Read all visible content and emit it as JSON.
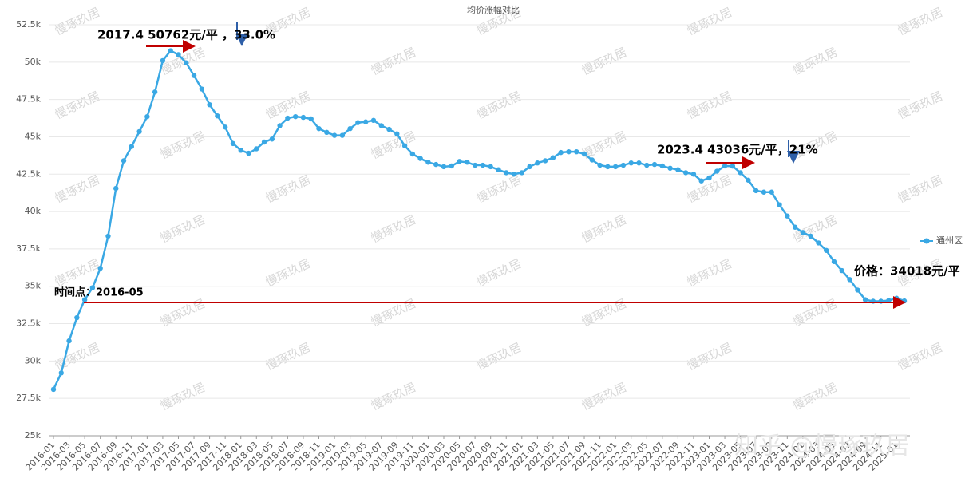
{
  "chart_data": {
    "type": "line",
    "title": "均价涨幅对比",
    "categories": [
      "2016-01",
      "2016-02",
      "2016-03",
      "2016-04",
      "2016-05",
      "2016-06",
      "2016-07",
      "2016-08",
      "2016-09",
      "2016-10",
      "2016-11",
      "2016-12",
      "2017-01",
      "2017-02",
      "2017-03",
      "2017-04",
      "2017-05",
      "2017-06",
      "2017-07",
      "2017-08",
      "2017-09",
      "2017-10",
      "2017-11",
      "2017-12",
      "2018-01",
      "2018-02",
      "2018-03",
      "2018-04",
      "2018-05",
      "2018-06",
      "2018-07",
      "2018-08",
      "2018-09",
      "2018-10",
      "2018-11",
      "2018-12",
      "2019-01",
      "2019-02",
      "2019-03",
      "2019-04",
      "2019-05",
      "2019-06",
      "2019-07",
      "2019-08",
      "2019-09",
      "2019-10",
      "2019-11",
      "2019-12",
      "2020-01",
      "2020-02",
      "2020-03",
      "2020-04",
      "2020-05",
      "2020-06",
      "2020-07",
      "2020-08",
      "2020-09",
      "2020-10",
      "2020-11",
      "2020-12",
      "2021-01",
      "2021-02",
      "2021-03",
      "2021-04",
      "2021-05",
      "2021-06",
      "2021-07",
      "2021-08",
      "2021-09",
      "2021-10",
      "2021-11",
      "2021-12",
      "2022-01",
      "2022-02",
      "2022-03",
      "2022-04",
      "2022-05",
      "2022-06",
      "2022-07",
      "2022-08",
      "2022-09",
      "2022-10",
      "2022-11",
      "2022-12",
      "2023-01",
      "2023-02",
      "2023-03",
      "2023-04",
      "2023-05",
      "2023-06",
      "2023-07",
      "2023-08",
      "2023-09",
      "2023-10",
      "2023-11",
      "2023-12",
      "2024-01",
      "2024-02",
      "2024-03",
      "2024-04",
      "2024-05",
      "2024-06",
      "2024-07",
      "2024-08",
      "2024-09",
      "2024-10",
      "2024-11",
      "2024-12",
      "2025-01",
      "2025-02"
    ],
    "series": [
      {
        "name": "通州区",
        "color": "#3aa8e4",
        "values": [
          28.1,
          29.2,
          31.35,
          32.9,
          34.1,
          34.9,
          36.2,
          38.35,
          41.55,
          43.4,
          44.35,
          45.35,
          46.35,
          48.0,
          50.1,
          50.76,
          50.5,
          49.95,
          49.1,
          48.2,
          47.15,
          46.4,
          45.65,
          44.55,
          44.1,
          43.9,
          44.2,
          44.65,
          44.85,
          45.75,
          46.25,
          46.35,
          46.3,
          46.2,
          45.55,
          45.3,
          45.1,
          45.1,
          45.55,
          45.95,
          46.0,
          46.1,
          45.75,
          45.5,
          45.2,
          44.4,
          43.85,
          43.55,
          43.3,
          43.15,
          43.0,
          43.05,
          43.35,
          43.3,
          43.1,
          43.1,
          43.0,
          42.8,
          42.6,
          42.5,
          42.6,
          43.0,
          43.25,
          43.4,
          43.6,
          43.95,
          44.0,
          44.0,
          43.85,
          43.45,
          43.1,
          43.0,
          43.0,
          43.1,
          43.25,
          43.25,
          43.1,
          43.15,
          43.05,
          42.9,
          42.8,
          42.6,
          42.5,
          42.05,
          42.25,
          42.7,
          43.05,
          43.04,
          42.6,
          42.1,
          41.4,
          41.3,
          41.3,
          40.45,
          39.7,
          38.95,
          38.6,
          38.35,
          37.9,
          37.4,
          36.65,
          36.05,
          35.45,
          34.75,
          34.1,
          34.0,
          34.0,
          34.05,
          34.2,
          34.02
        ]
      }
    ],
    "ylim": [
      25,
      52.5
    ],
    "yticks": [
      {
        "value": 25,
        "label": "25k"
      },
      {
        "value": 27.5,
        "label": "27.5k"
      },
      {
        "value": 30,
        "label": "30k"
      },
      {
        "value": 32.5,
        "label": "32.5k"
      },
      {
        "value": 35,
        "label": "35k"
      },
      {
        "value": 37.5,
        "label": "37.5k"
      },
      {
        "value": 40,
        "label": "40k"
      },
      {
        "value": 42.5,
        "label": "42.5k"
      },
      {
        "value": 45,
        "label": "45k"
      },
      {
        "value": 47.5,
        "label": "47.5k"
      },
      {
        "value": 50,
        "label": "50k"
      },
      {
        "value": 52.5,
        "label": "52.5k"
      }
    ],
    "grid": true,
    "legend": "right",
    "annotations": [
      "2017.4  50762元/平 ，33.0%",
      "2023.4  43036元/平，21%",
      "价格：34018元/平",
      "时间点：2016-05"
    ],
    "watermark": "慢琢玖居",
    "footer": "知乎 @慢琢玖居"
  }
}
